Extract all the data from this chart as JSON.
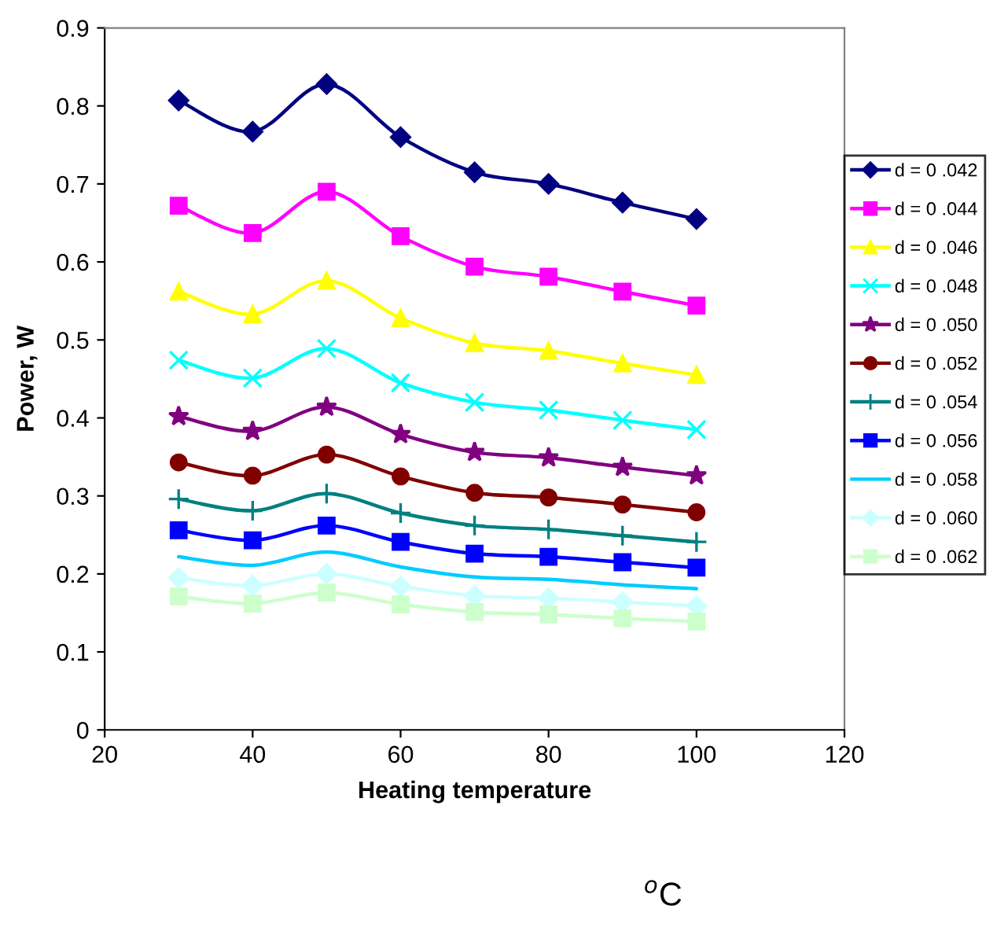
{
  "chart_data": {
    "type": "line",
    "xlabel": "Heating temperature",
    "ylabel": "Power, W",
    "x": [
      30,
      40,
      50,
      60,
      70,
      80,
      90,
      100
    ],
    "xlim": [
      20,
      120
    ],
    "xticks": [
      20,
      40,
      60,
      80,
      100,
      120
    ],
    "ylim": [
      0,
      0.9
    ],
    "yticks": [
      0,
      0.1,
      0.2,
      0.3,
      0.4,
      0.5,
      0.6,
      0.7,
      0.8,
      0.9
    ],
    "grid": false,
    "legend": "right",
    "line_style": "solid",
    "annotations": [
      "$^{o}$C"
    ],
    "series": [
      {
        "name": "d = 0 .042",
        "color": "#000080",
        "marker": "diamond",
        "values": [
          0.807,
          0.767,
          0.828,
          0.76,
          0.715,
          0.7,
          0.676,
          0.655
        ]
      },
      {
        "name": "d = 0 .044",
        "color": "#ff00ff",
        "marker": "square",
        "values": [
          0.672,
          0.637,
          0.69,
          0.633,
          0.594,
          0.581,
          0.562,
          0.544
        ]
      },
      {
        "name": "d = 0 .046",
        "color": "#ffff00",
        "marker": "triangle",
        "values": [
          0.562,
          0.533,
          0.576,
          0.528,
          0.496,
          0.486,
          0.47,
          0.455
        ]
      },
      {
        "name": "d = 0 .048",
        "color": "#00ffff",
        "marker": "cross",
        "values": [
          0.474,
          0.451,
          0.489,
          0.445,
          0.42,
          0.41,
          0.397,
          0.385
        ]
      },
      {
        "name": "d = 0 .050",
        "color": "#800080",
        "marker": "star",
        "values": [
          0.402,
          0.383,
          0.414,
          0.379,
          0.356,
          0.349,
          0.337,
          0.326
        ]
      },
      {
        "name": "d = 0 .052",
        "color": "#800000",
        "marker": "circle",
        "values": [
          0.343,
          0.326,
          0.353,
          0.325,
          0.304,
          0.298,
          0.289,
          0.279
        ]
      },
      {
        "name": "d = 0 .054",
        "color": "#008080",
        "marker": "plus",
        "values": [
          0.296,
          0.281,
          0.303,
          0.278,
          0.262,
          0.257,
          0.249,
          0.241
        ]
      },
      {
        "name": "d = 0 .056",
        "color": "#0000ff",
        "marker": "square",
        "values": [
          0.256,
          0.243,
          0.262,
          0.241,
          0.226,
          0.222,
          0.215,
          0.208
        ]
      },
      {
        "name": "d = 0 .058",
        "color": "#00ccff",
        "marker": "none",
        "values": [
          0.222,
          0.211,
          0.228,
          0.209,
          0.196,
          0.193,
          0.186,
          0.181
        ]
      },
      {
        "name": "d = 0 .060",
        "color": "#ccffff",
        "marker": "diamond",
        "values": [
          0.195,
          0.185,
          0.2,
          0.184,
          0.172,
          0.169,
          0.164,
          0.159
        ]
      },
      {
        "name": "d = 0 .062",
        "color": "#ccffcc",
        "marker": "square",
        "values": [
          0.171,
          0.162,
          0.176,
          0.161,
          0.151,
          0.148,
          0.143,
          0.139
        ]
      }
    ]
  }
}
